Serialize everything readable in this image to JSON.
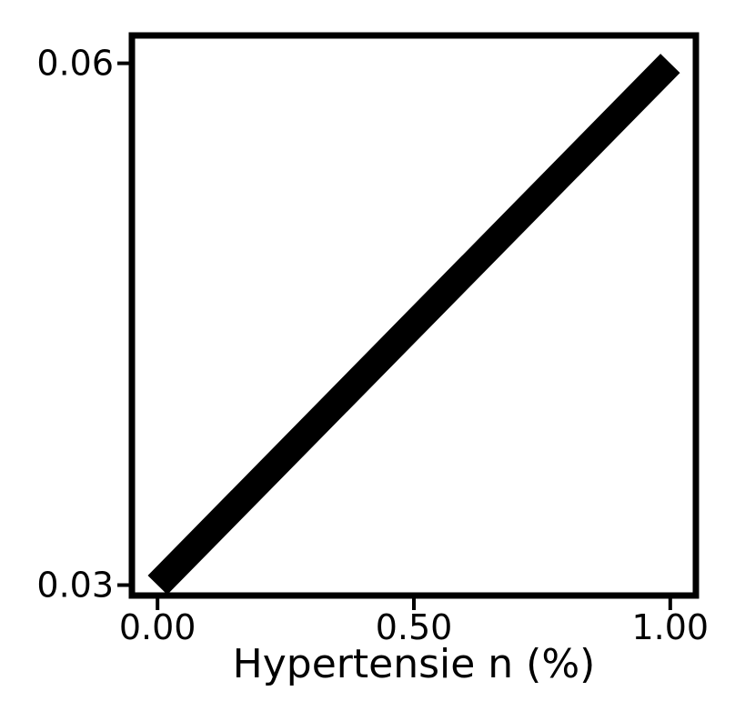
{
  "chart_data": {
    "type": "line",
    "title": "",
    "xlabel": "Hypertensie n (%)",
    "ylabel": "",
    "xlim": [
      -0.05,
      1.05
    ],
    "ylim": [
      0.0294,
      0.0616
    ],
    "x_ticks": [
      {
        "value": 0.0,
        "label": "0.00"
      },
      {
        "value": 0.5,
        "label": "0.50"
      },
      {
        "value": 1.0,
        "label": "1.00"
      }
    ],
    "y_ticks": [
      {
        "value": 0.03,
        "label": "0.03"
      },
      {
        "value": 0.06,
        "label": "0.06"
      }
    ],
    "series": [
      {
        "x": [
          0.0,
          1.0
        ],
        "y": [
          0.03,
          0.06
        ],
        "color": "#000000"
      }
    ],
    "grid": false,
    "legend": "none"
  }
}
